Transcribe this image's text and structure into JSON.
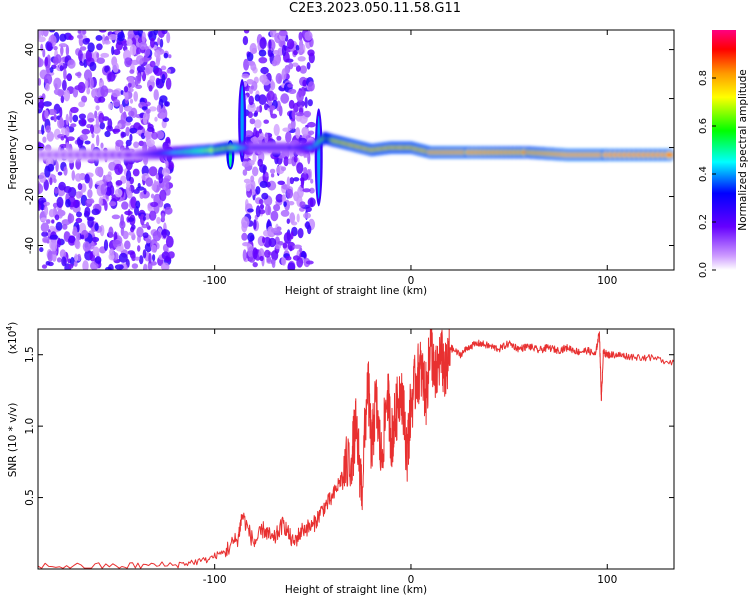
{
  "title": "C2E3.2023.050.11.58.G11",
  "chart_data": [
    {
      "type": "heatmap",
      "xlabel": "Height of straight line (km)",
      "ylabel": "Frequency (Hz)",
      "xlim": [
        -190,
        134
      ],
      "ylim": [
        -50,
        48
      ],
      "xticks": [
        -100,
        0,
        100
      ],
      "yticks": [
        -40,
        -20,
        0,
        20,
        40
      ],
      "colorbar": {
        "label": "Normalized spectral amplitude",
        "ticks": [
          "0.0",
          "0.2",
          "0.4",
          "0.6",
          "0.8"
        ],
        "range": [
          0,
          1
        ],
        "colors": [
          "#ffffff",
          "#cc99ff",
          "#6600ff",
          "#0000ff",
          "#00ffff",
          "#00ff00",
          "#ffff00",
          "#ff9900",
          "#ff0000",
          "#ff0080"
        ]
      },
      "ridge": {
        "x": [
          -190,
          -140,
          -120,
          -100,
          -92,
          -80,
          -60,
          -50,
          -44,
          -40,
          -30,
          -20,
          -10,
          0,
          10,
          30,
          60,
          80,
          100,
          134
        ],
        "y": [
          -3,
          -3,
          -2,
          -1,
          0,
          0,
          0,
          0,
          4,
          3,
          1,
          -1,
          0,
          0,
          -2,
          -2,
          -2,
          -3,
          -3,
          -3
        ],
        "amplitude": [
          0.1,
          0.15,
          0.45,
          0.7,
          0.75,
          0.25,
          0.25,
          0.45,
          0.8,
          0.85,
          0.9,
          0.9,
          0.9,
          0.9,
          0.92,
          0.93,
          0.9,
          0.95,
          0.95,
          0.95
        ]
      },
      "scatter_regions": [
        {
          "x": [
            -190,
            -122
          ],
          "y": [
            -50,
            48
          ],
          "amplitude": 0.3
        },
        {
          "x": [
            -85,
            -50
          ],
          "y": [
            -50,
            48
          ],
          "amplitude": 0.3
        }
      ],
      "features": [
        {
          "x": -92,
          "y": [
            -9,
            3
          ],
          "amplitude": 0.5
        },
        {
          "x": -86,
          "y": [
            -6,
            28
          ],
          "amplitude": 0.4
        },
        {
          "x": -47,
          "y": [
            -24,
            16
          ],
          "amplitude": 0.4
        }
      ]
    },
    {
      "type": "line",
      "xlabel": "Height of straight line (km)",
      "ylabel": "SNR (10 * v/v)",
      "exponent_label": "(x10",
      "exponent_value": "4",
      "exponent_close": ")",
      "xlim": [
        -190,
        134
      ],
      "ylim": [
        0,
        1.68
      ],
      "xticks": [
        -100,
        0,
        100
      ],
      "yticks": [
        "0.5",
        "1.0",
        "1.5"
      ],
      "color": "#e83030",
      "series": [
        {
          "x": [
            -190,
            -150,
            -120,
            -105,
            -95,
            -88,
            -86,
            -80,
            -75,
            -70,
            -65,
            -60,
            -55,
            -50,
            -45,
            -40,
            -35,
            -30,
            -28,
            -25,
            -22,
            -20,
            -18,
            -15,
            -12,
            -10,
            -8,
            -5,
            -2,
            0,
            3,
            5,
            8,
            10,
            12,
            15,
            18,
            20,
            25,
            30,
            35,
            40,
            45,
            50,
            55,
            60,
            65,
            70,
            75,
            80,
            85,
            90,
            94,
            96,
            97,
            98,
            100,
            105,
            110,
            120,
            134
          ],
          "y": [
            0.02,
            0.02,
            0.03,
            0.06,
            0.12,
            0.22,
            0.38,
            0.18,
            0.28,
            0.2,
            0.32,
            0.18,
            0.28,
            0.3,
            0.42,
            0.5,
            0.65,
            0.8,
            1.0,
            0.55,
            1.35,
            0.8,
            1.2,
            0.75,
            1.25,
            0.9,
            1.05,
            1.3,
            0.8,
            1.15,
            1.35,
            1.4,
            1.2,
            1.65,
            1.3,
            1.5,
            1.35,
            1.55,
            1.5,
            1.56,
            1.58,
            1.56,
            1.54,
            1.58,
            1.54,
            1.56,
            1.53,
            1.55,
            1.53,
            1.55,
            1.52,
            1.53,
            1.5,
            1.66,
            1.18,
            1.52,
            1.5,
            1.5,
            1.49,
            1.48,
            1.45
          ]
        }
      ]
    }
  ]
}
